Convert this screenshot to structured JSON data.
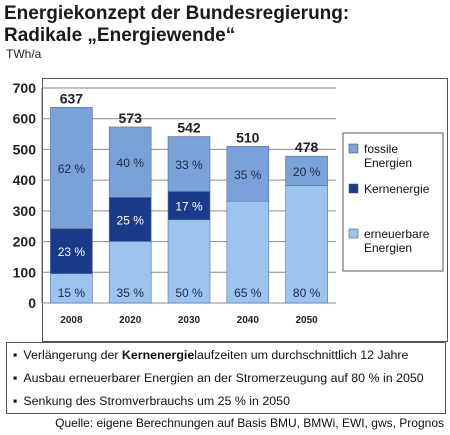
{
  "title_line1": "Energiekonzept der Bundesregierung:",
  "title_line2": "Radikale „Energiewende“",
  "unit": "TWh/a",
  "chart_data": {
    "type": "bar",
    "stacked": true,
    "categories": [
      "2008",
      "2020",
      "2030",
      "2040",
      "2050"
    ],
    "totals": [
      637,
      573,
      542,
      510,
      478
    ],
    "ylim": [
      0,
      700
    ],
    "yticks": [
      0,
      100,
      200,
      300,
      400,
      500,
      600,
      700
    ],
    "ylabel": "TWh/a",
    "grid": true,
    "legend_placement": "right",
    "series": [
      {
        "name": "erneuerbare Energien",
        "color": "#9dc3ef",
        "percent_labels": [
          "15 %",
          "35 %",
          "50 %",
          "65 %",
          "80 %"
        ],
        "values": [
          95.6,
          200.6,
          271.0,
          331.5,
          382.4
        ]
      },
      {
        "name": "Kernenergie",
        "color": "#1a3a8a",
        "percent_labels": [
          "23 %",
          "25 %",
          "17 %",
          "",
          ""
        ],
        "values": [
          146.5,
          143.3,
          92.1,
          0,
          0
        ]
      },
      {
        "name": "fossile Energien",
        "color": "#7aa2d8",
        "percent_labels": [
          "62 %",
          "40 %",
          "33 %",
          "35 %",
          "20 %"
        ],
        "values": [
          394.9,
          229.2,
          178.9,
          178.5,
          95.6
        ]
      }
    ],
    "legend": [
      {
        "line1": "fossile",
        "line2": "Energien",
        "color": "#7aa2d8"
      },
      {
        "line1": "Kernenergie",
        "line2": "",
        "color": "#1a3a8a"
      },
      {
        "line1": "erneuerbare",
        "line2": "Energien",
        "color": "#9dc3ef"
      }
    ]
  },
  "bullets": [
    {
      "pre": "Verlängerung der ",
      "bold": "Kernenergie",
      "post": "laufzeiten um durchschnittlich 12 Jahre"
    },
    {
      "pre": "Ausbau erneuerbarer Energien an der Stromerzeugung auf 80 % in 2050",
      "bold": "",
      "post": ""
    },
    {
      "pre": "Senkung des Stromverbrauchs um 25 % in 2050",
      "bold": "",
      "post": ""
    }
  ],
  "source": "Quelle: eigene Berechnungen auf Basis BMU, BMWi, EWI, gws, Prognos"
}
